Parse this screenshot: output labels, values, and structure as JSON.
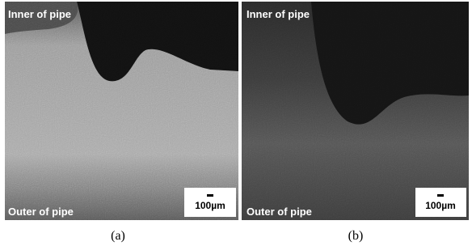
{
  "panels": [
    {
      "label": "(a)",
      "top_text": "Inner of pipe",
      "bottom_text": "Outer of pipe",
      "scale_text": "100µm"
    },
    {
      "label": "(b)",
      "top_text": "Inner of pipe",
      "bottom_text": "Outer of pipe",
      "scale_text": "100µm"
    }
  ]
}
